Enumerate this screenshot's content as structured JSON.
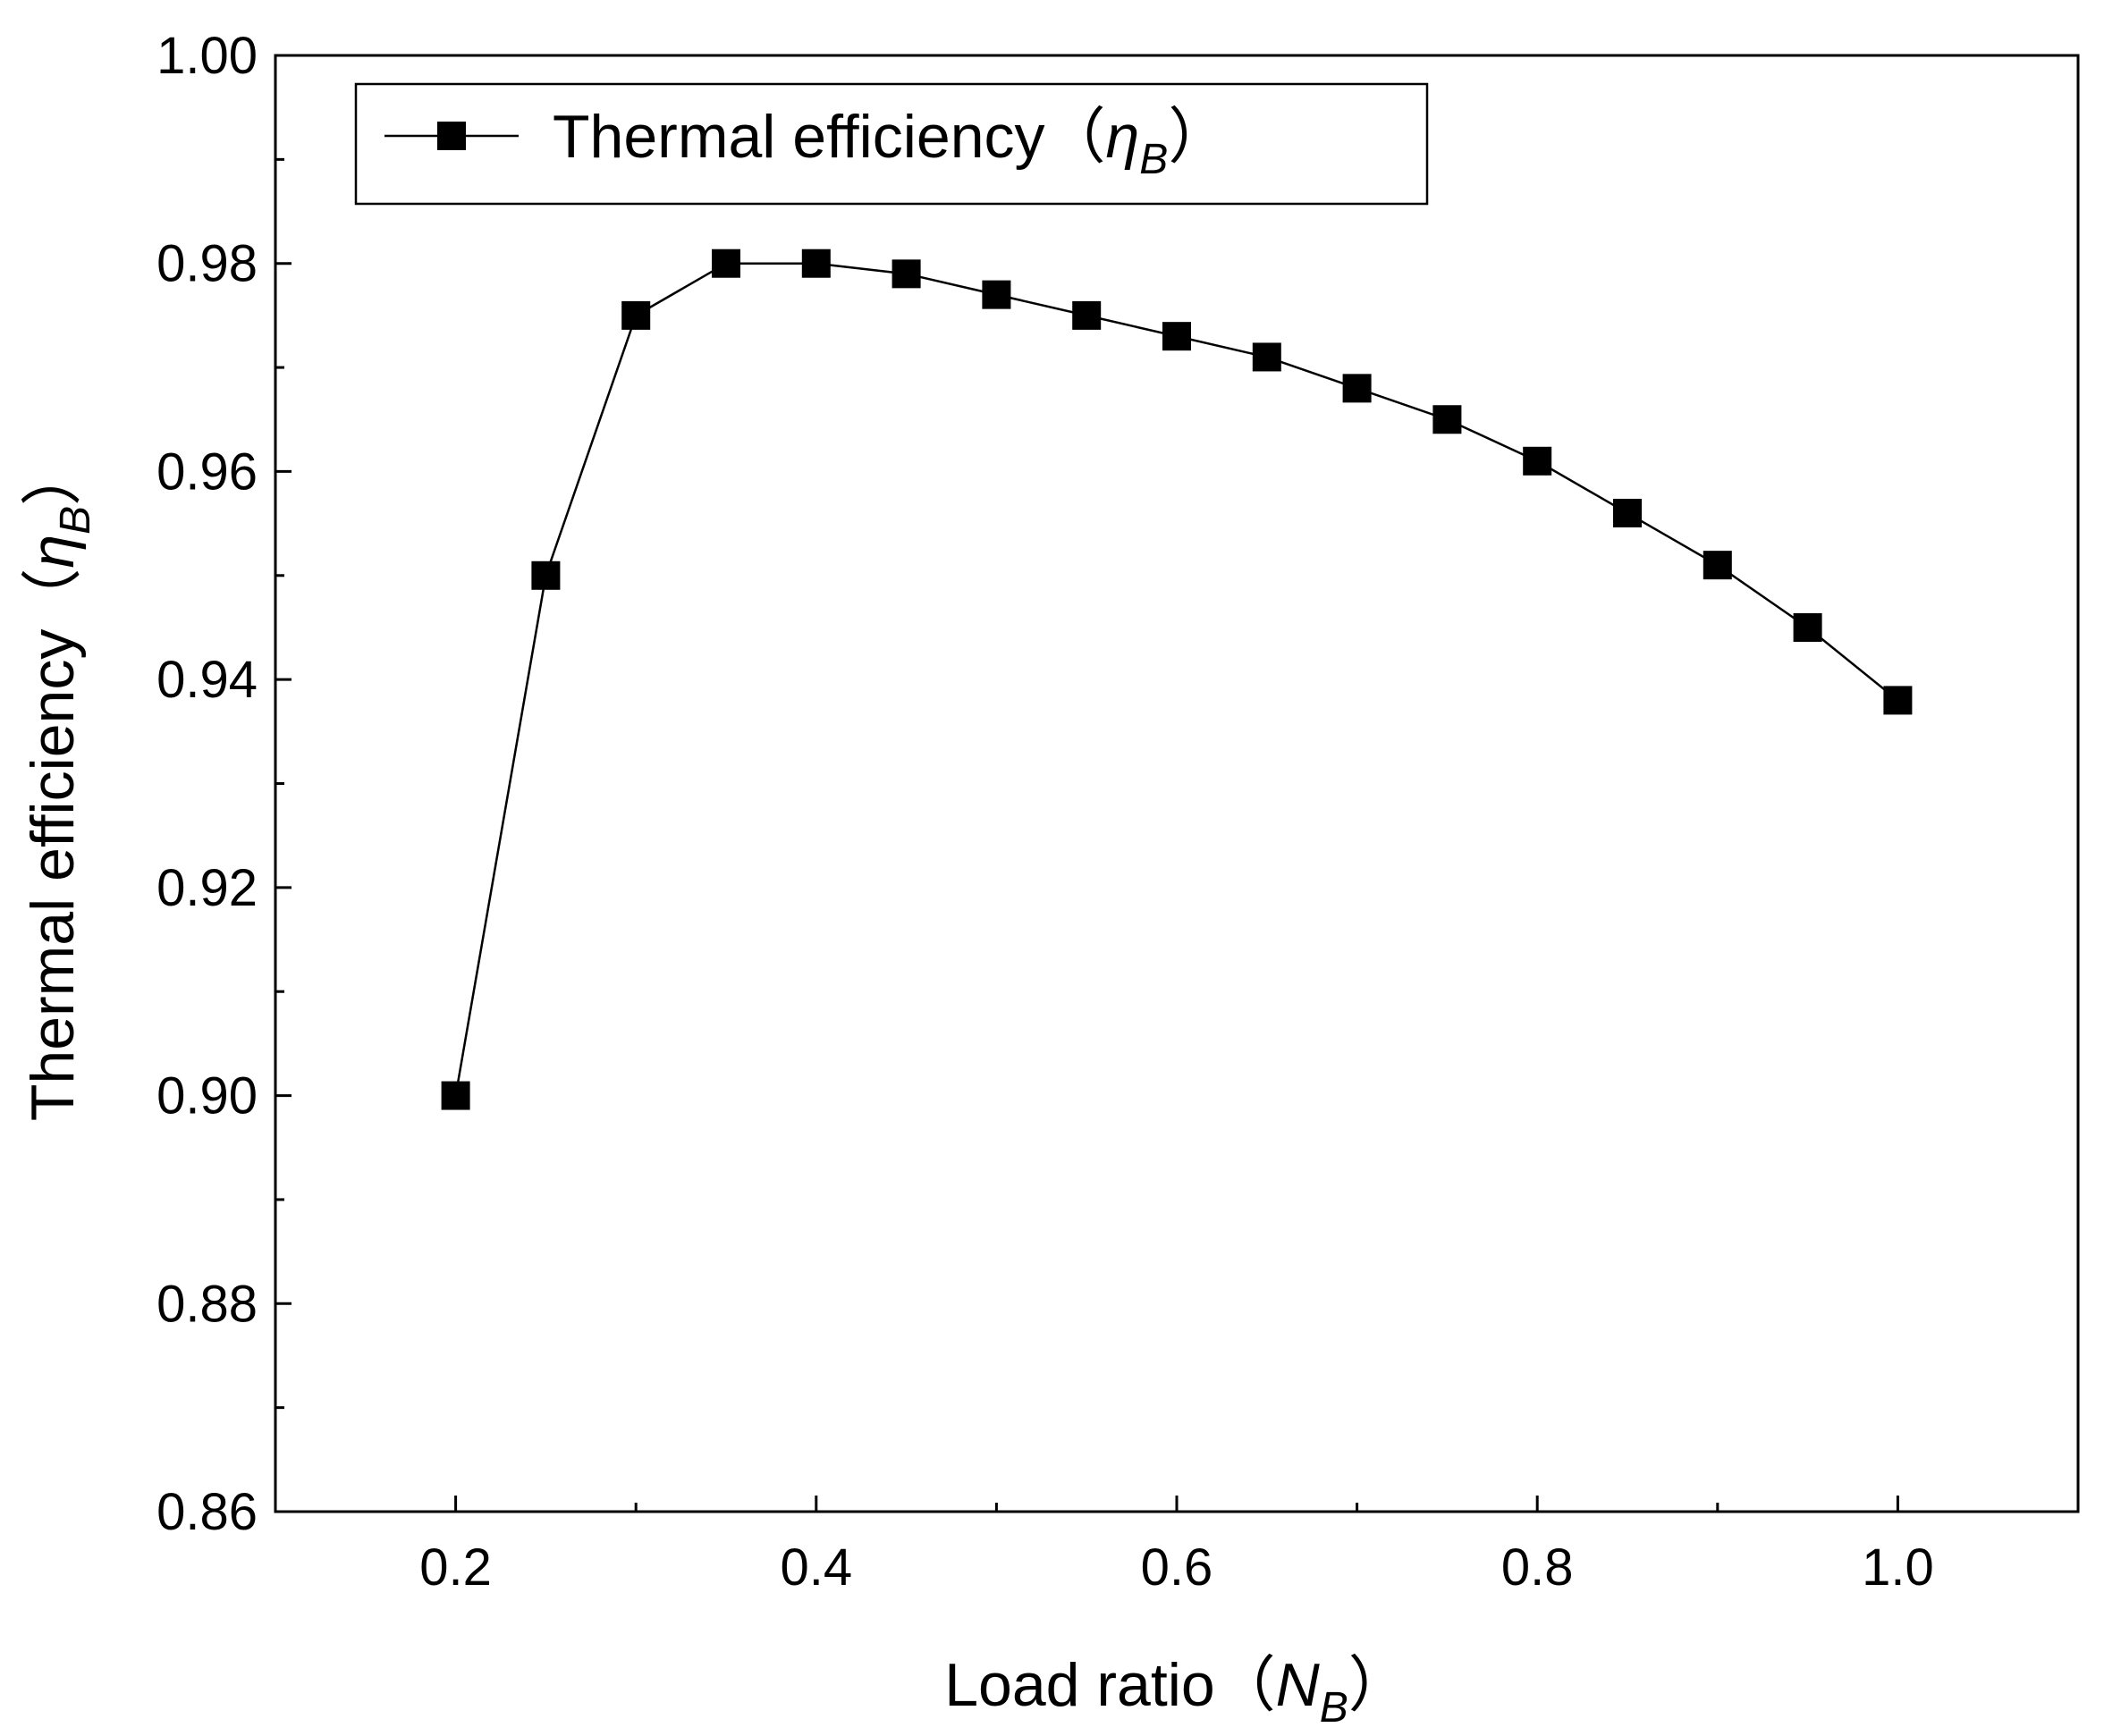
{
  "chart_data": {
    "type": "line",
    "title": "",
    "xlabel": "Load ratio（",
    "xlabel_symbol": "N",
    "xlabel_subscript": "B",
    "xlabel_close": "）",
    "ylabel": "Thermal efficiency（",
    "ylabel_symbol": "η",
    "ylabel_subscript": "B",
    "ylabel_close": "）",
    "xlim": [
      0.1,
      1.1
    ],
    "ylim": [
      0.86,
      1.0
    ],
    "xticks": [
      0.2,
      0.4,
      0.6,
      0.8,
      1.0
    ],
    "xtick_labels": [
      "0.2",
      "0.4",
      "0.6",
      "0.8",
      "1.0"
    ],
    "yticks": [
      0.86,
      0.88,
      0.9,
      0.92,
      0.94,
      0.96,
      0.98,
      1.0
    ],
    "ytick_labels": [
      "0.86",
      "0.88",
      "0.90",
      "0.92",
      "0.94",
      "0.96",
      "0.98",
      "1.00"
    ],
    "grid": false,
    "legend_position": "top-left",
    "series": [
      {
        "name": "Thermal efficiency",
        "name_open": "（",
        "name_symbol": "η",
        "name_subscript": "B",
        "name_close": "）",
        "marker": "square",
        "color": "#000000",
        "x": [
          0.2,
          0.25,
          0.3,
          0.35,
          0.4,
          0.45,
          0.5,
          0.55,
          0.6,
          0.65,
          0.7,
          0.75,
          0.8,
          0.85,
          0.9,
          0.95,
          1.0
        ],
        "values": [
          0.9,
          0.95,
          0.975,
          0.98,
          0.98,
          0.979,
          0.977,
          0.975,
          0.973,
          0.971,
          0.968,
          0.965,
          0.961,
          0.956,
          0.951,
          0.945,
          0.938
        ]
      }
    ]
  }
}
